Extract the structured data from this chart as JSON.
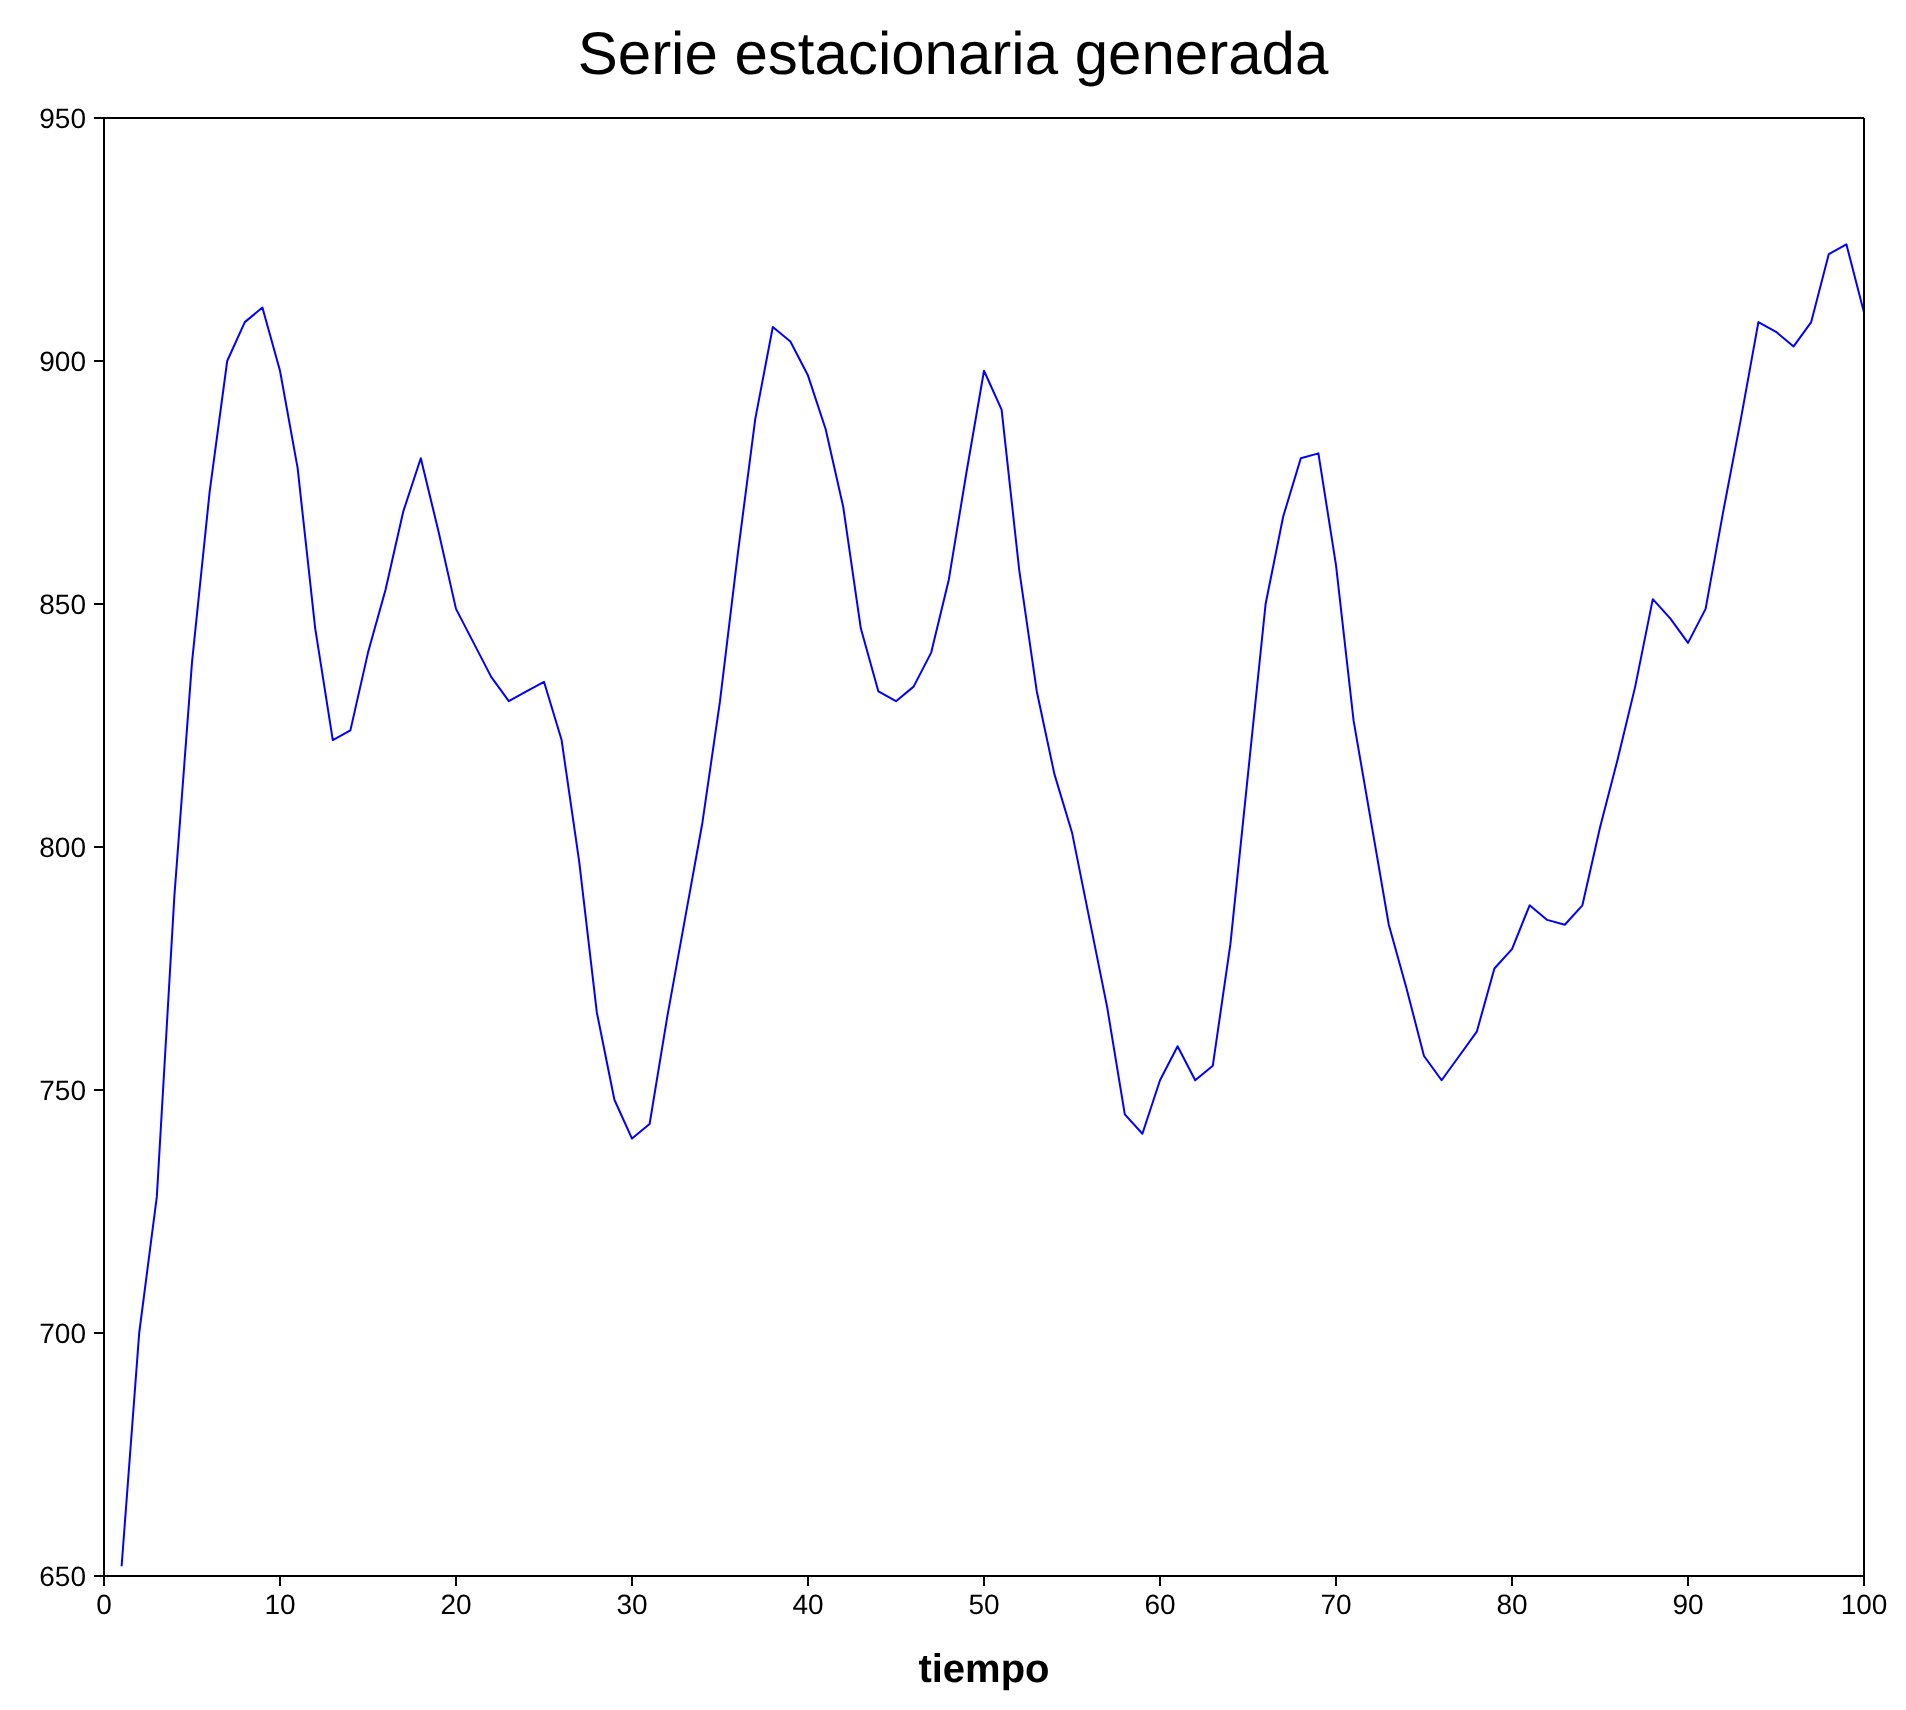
{
  "chart_data": {
    "type": "line",
    "title": "Serie estacionaria generada",
    "xlabel": "tiempo",
    "x": [
      1,
      2,
      3,
      4,
      5,
      6,
      7,
      8,
      9,
      10,
      11,
      12,
      13,
      14,
      15,
      16,
      17,
      18,
      19,
      20,
      21,
      22,
      23,
      24,
      25,
      26,
      27,
      28,
      29,
      30,
      31,
      32,
      33,
      34,
      35,
      36,
      37,
      38,
      39,
      40,
      41,
      42,
      43,
      44,
      45,
      46,
      47,
      48,
      49,
      50,
      51,
      52,
      53,
      54,
      55,
      56,
      57,
      58,
      59,
      60,
      61,
      62,
      63,
      64,
      65,
      66,
      67,
      68,
      69,
      70,
      71,
      72,
      73,
      74,
      75,
      76,
      77,
      78,
      79,
      80,
      81,
      82,
      83,
      84,
      85,
      86,
      87,
      88,
      89,
      90,
      91,
      92,
      93,
      94,
      95,
      96,
      97,
      98,
      99,
      100
    ],
    "series": [
      {
        "color": "#0000ff",
        "values": [
          652,
          700,
          728,
          790,
          838,
          873,
          900,
          908,
          911,
          898,
          878,
          845,
          822,
          824,
          840,
          853,
          869,
          880,
          865,
          849,
          842,
          835,
          830,
          832,
          834,
          822,
          797,
          766,
          748,
          740,
          743,
          765,
          785,
          805,
          830,
          860,
          888,
          907,
          904,
          897,
          886,
          870,
          845,
          832,
          830,
          833,
          840,
          855,
          877,
          898,
          890,
          857,
          832,
          815,
          803,
          785,
          767,
          745,
          741,
          752,
          759,
          752,
          755,
          780,
          815,
          850,
          868,
          880,
          881,
          858,
          826,
          805,
          784,
          771,
          757,
          752,
          757,
          762,
          775,
          779,
          788,
          785,
          784,
          788,
          804,
          818,
          833,
          851,
          847,
          842,
          849,
          869,
          888,
          908,
          906,
          903,
          908,
          922,
          924,
          910
        ]
      }
    ],
    "xlim": [
      0,
      100
    ],
    "xticks": [
      0,
      10,
      20,
      30,
      40,
      50,
      60,
      70,
      80,
      90,
      100
    ],
    "ylim": [
      650,
      950
    ],
    "yticks": [
      650,
      700,
      750,
      800,
      850,
      900,
      950
    ],
    "grid": false,
    "legend": false,
    "marker": "none",
    "line_style": "solid"
  }
}
